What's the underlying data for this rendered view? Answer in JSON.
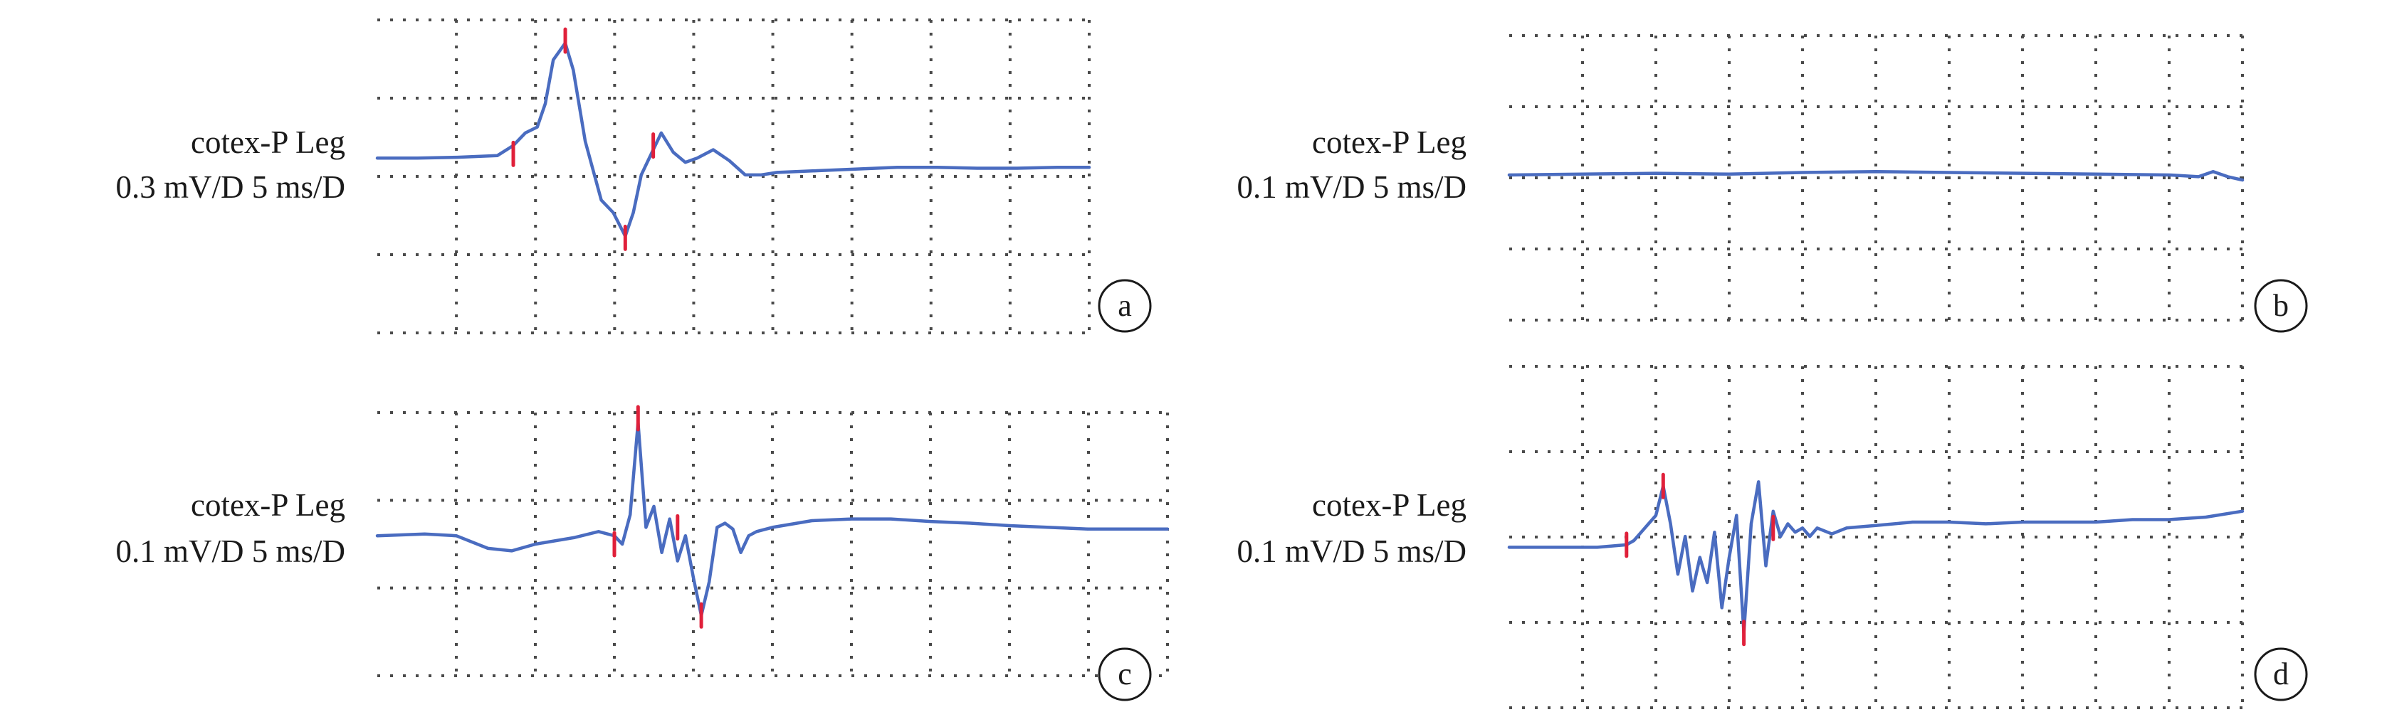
{
  "chart_data": [
    {
      "type": "line",
      "panel": "a",
      "label_lines": [
        "cotex-P Leg",
        "0.3 mV/D 5 ms/D"
      ],
      "grid": true,
      "x_divisions": 9,
      "y_divisions": 4,
      "series": [
        {
          "x": [
            0,
            0.5,
            1.0,
            1.5,
            1.7,
            1.85,
            2.0,
            2.1,
            2.2,
            2.35,
            2.45,
            2.6,
            2.8,
            2.95,
            3.1,
            3.2,
            3.3,
            3.45,
            3.55,
            3.7,
            3.85,
            4.0,
            4.2,
            4.4,
            4.6,
            4.8,
            5.0,
            5.5,
            6.0,
            6.5,
            7.0,
            7.5,
            8.0,
            8.5,
            8.9
          ],
          "y": [
            0.15,
            0.15,
            0.16,
            0.18,
            0.3,
            0.45,
            0.52,
            0.8,
            1.32,
            1.52,
            1.2,
            0.35,
            -0.35,
            -0.5,
            -0.78,
            -0.5,
            -0.05,
            0.25,
            0.45,
            0.22,
            0.1,
            0.15,
            0.25,
            0.12,
            -0.05,
            -0.05,
            -0.02,
            0.0,
            0.02,
            0.04,
            0.04,
            0.03,
            0.03,
            0.04,
            0.04
          ]
        }
      ],
      "markers": [
        {
          "x": 1.7,
          "y": 0.2
        },
        {
          "x": 2.35,
          "y": 1.55
        },
        {
          "x": 3.1,
          "y": -0.8
        },
        {
          "x": 3.45,
          "y": 0.3
        }
      ]
    },
    {
      "type": "line",
      "panel": "b",
      "label_lines": [
        "cotex-P Leg",
        "0.1 mV/D 5 ms/D"
      ],
      "grid": true,
      "x_divisions": 10,
      "y_divisions": 4,
      "series": [
        {
          "x": [
            0,
            1,
            2,
            3,
            4,
            5,
            6,
            7,
            8,
            9,
            9.4,
            9.6,
            9.8,
            10
          ],
          "y": [
            0.0,
            0.01,
            0.02,
            0.01,
            0.03,
            0.04,
            0.03,
            0.02,
            0.01,
            0.0,
            -0.02,
            0.04,
            -0.02,
            -0.06
          ]
        }
      ],
      "markers": []
    },
    {
      "type": "line",
      "panel": "c",
      "label_lines": [
        "cotex-P Leg",
        "0.1 mV/D 5 ms/D"
      ],
      "grid": true,
      "x_divisions": 10,
      "y_divisions": 3,
      "series": [
        {
          "x": [
            0,
            0.6,
            1.0,
            1.4,
            1.7,
            2.0,
            2.5,
            2.8,
            3.0,
            3.1,
            3.2,
            3.3,
            3.4,
            3.5,
            3.6,
            3.7,
            3.8,
            3.9,
            4.0,
            4.1,
            4.2,
            4.3,
            4.4,
            4.5,
            4.6,
            4.7,
            4.8,
            5.0,
            5.5,
            6.0,
            6.5,
            7.0,
            7.5,
            8.0,
            8.5,
            9.0,
            9.5,
            10.0
          ],
          "y": [
            0.1,
            0.12,
            0.1,
            -0.05,
            -0.08,
            0.0,
            0.08,
            0.15,
            0.1,
            0.0,
            0.35,
            1.45,
            0.2,
            0.45,
            -0.1,
            0.3,
            -0.2,
            0.1,
            -0.4,
            -0.85,
            -0.45,
            0.2,
            0.25,
            0.18,
            -0.1,
            0.1,
            0.15,
            0.2,
            0.28,
            0.3,
            0.3,
            0.27,
            0.25,
            0.22,
            0.2,
            0.18,
            0.18,
            0.18
          ]
        }
      ],
      "markers": [
        {
          "x": 3.0,
          "y": 0.0
        },
        {
          "x": 3.3,
          "y": 1.5
        },
        {
          "x": 3.8,
          "y": 0.2
        },
        {
          "x": 4.1,
          "y": -0.85
        }
      ]
    },
    {
      "type": "line",
      "panel": "d",
      "label_lines": [
        "cotex-P Leg",
        "0.1 mV/D 5 ms/D"
      ],
      "grid": true,
      "x_divisions": 10,
      "y_divisions": 4,
      "series": [
        {
          "x": [
            0,
            0.4,
            0.8,
            1.2,
            1.6,
            1.7,
            1.8,
            1.9,
            2.0,
            2.1,
            2.2,
            2.3,
            2.4,
            2.5,
            2.6,
            2.7,
            2.8,
            2.9,
            3.0,
            3.1,
            3.2,
            3.3,
            3.4,
            3.5,
            3.6,
            3.7,
            3.8,
            3.9,
            4.0,
            4.1,
            4.2,
            4.4,
            4.6,
            5.0,
            5.5,
            6.0,
            6.5,
            7.0,
            7.5,
            8.0,
            8.5,
            9.0,
            9.5,
            10.0
          ],
          "y": [
            -0.08,
            -0.08,
            -0.08,
            -0.08,
            -0.05,
            0.0,
            0.1,
            0.2,
            0.3,
            0.65,
            0.2,
            -0.4,
            0.05,
            -0.6,
            -0.2,
            -0.5,
            0.1,
            -0.8,
            -0.2,
            0.3,
            -1.1,
            0.2,
            0.7,
            -0.3,
            0.35,
            0.05,
            0.2,
            0.1,
            0.15,
            0.05,
            0.15,
            0.08,
            0.15,
            0.18,
            0.22,
            0.22,
            0.2,
            0.22,
            0.22,
            0.22,
            0.25,
            0.25,
            0.28,
            0.35
          ]
        }
      ],
      "markers": [
        {
          "x": 1.6,
          "y": -0.05
        },
        {
          "x": 2.1,
          "y": 0.65
        },
        {
          "x": 3.2,
          "y": -1.1
        },
        {
          "x": 3.6,
          "y": 0.15
        }
      ]
    }
  ]
}
